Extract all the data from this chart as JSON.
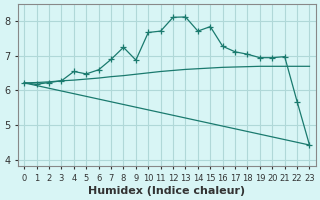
{
  "bg_color": "#d8f5f5",
  "grid_color": "#b0d8d8",
  "line_color": "#1a7a6e",
  "xlabel": "Humidex (Indice chaleur)",
  "xlabel_fontsize": 8,
  "tick_fontsize": 7,
  "yticks": [
    4,
    5,
    6,
    7,
    8
  ],
  "ylim": [
    3.8,
    8.5
  ],
  "xlim": [
    -0.5,
    23.5
  ],
  "xtick_labels": [
    "0",
    "1",
    "2",
    "3",
    "4",
    "5",
    "6",
    "7",
    "8",
    "9",
    "10",
    "11",
    "12",
    "13",
    "14",
    "15",
    "16",
    "17",
    "18",
    "19",
    "20",
    "21",
    "22",
    "23"
  ],
  "curve1_x": [
    0,
    1,
    2,
    3,
    4,
    5,
    6,
    7,
    8,
    9,
    10,
    11,
    12,
    13,
    14,
    15,
    16,
    17,
    18,
    19,
    20,
    21,
    22,
    23
  ],
  "curve1_y": [
    6.22,
    6.18,
    6.23,
    6.28,
    6.55,
    6.48,
    6.6,
    6.9,
    7.25,
    6.88,
    7.68,
    7.72,
    8.12,
    8.13,
    7.72,
    7.85,
    7.28,
    7.12,
    7.05,
    6.95,
    6.95,
    6.98,
    5.68,
    4.42
  ],
  "curve2_x": [
    0,
    1,
    2,
    3,
    4,
    5,
    6,
    7,
    8,
    9,
    10,
    11,
    12,
    13,
    14,
    15,
    16,
    17,
    18,
    19,
    20,
    21,
    22,
    23
  ],
  "curve2_y": [
    6.22,
    6.23,
    6.25,
    6.28,
    6.3,
    6.33,
    6.36,
    6.4,
    6.43,
    6.47,
    6.51,
    6.55,
    6.58,
    6.61,
    6.63,
    6.65,
    6.67,
    6.68,
    6.69,
    6.7,
    6.7,
    6.7,
    6.7,
    6.7
  ],
  "curve3_x": [
    0,
    23
  ],
  "curve3_y": [
    6.22,
    4.42
  ]
}
